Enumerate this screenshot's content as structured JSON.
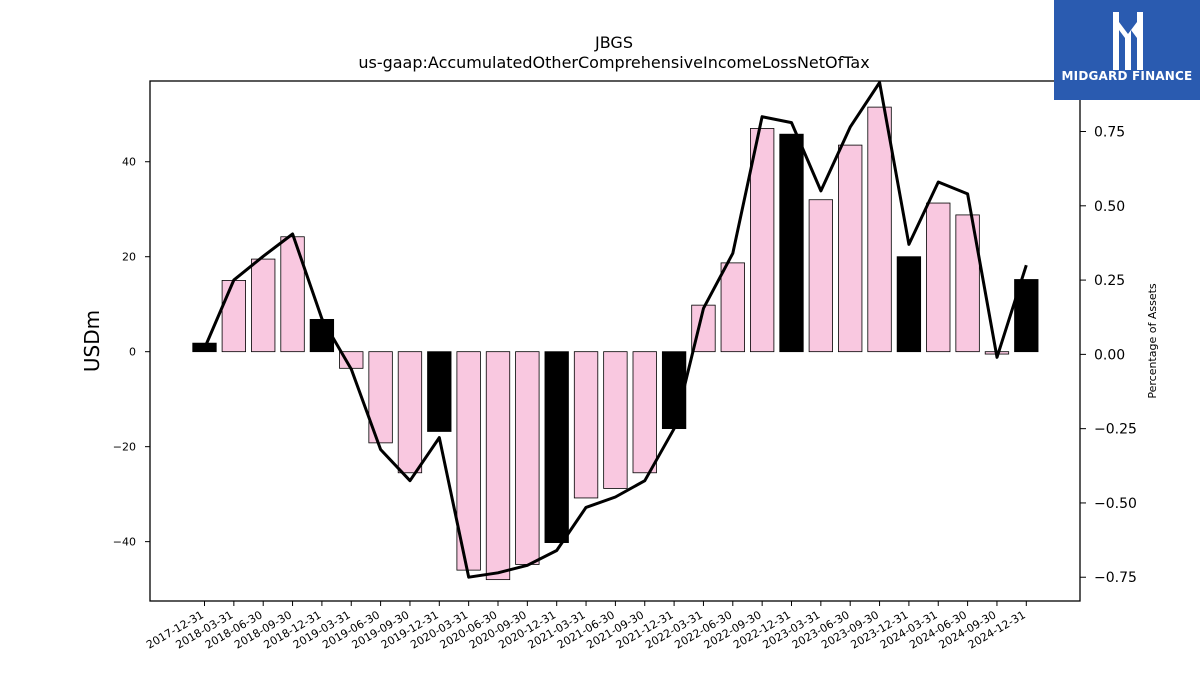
{
  "brand": {
    "name": "MIDGARD FINANCE",
    "background": "#2a5bb0",
    "icon": "midgard-logo-icon"
  },
  "chart_data": {
    "type": "bar",
    "title": "JBGS",
    "subtitle": "us-gaap:AccumulatedOtherComprehensiveIncomeLossNetOfTax",
    "ylabel": "USDm",
    "ylabel_right": "Percentage of Assets",
    "ylim": [
      -52.5,
      57
    ],
    "ylim_right": [
      -0.83,
      0.92
    ],
    "yticks": [
      -40,
      -20,
      0,
      20,
      40
    ],
    "yticks_right": [
      -0.75,
      -0.5,
      -0.25,
      0.0,
      0.25,
      0.5,
      0.75
    ],
    "yticks_right_labels": [
      "−0.75",
      "−0.50",
      "−0.25",
      "0.00",
      "0.25",
      "0.50",
      "0.75"
    ],
    "grid": false,
    "colors": {
      "quarter": "#f9c8e0",
      "year_end": "#000000",
      "line": "#000000"
    },
    "categories": [
      "2017-12-31",
      "2018-03-31",
      "2018-06-30",
      "2018-09-30",
      "2018-12-31",
      "2019-03-31",
      "2019-06-30",
      "2019-09-30",
      "2019-12-31",
      "2020-03-31",
      "2020-06-30",
      "2020-09-30",
      "2020-12-31",
      "2021-03-31",
      "2021-06-30",
      "2021-09-30",
      "2021-12-31",
      "2022-03-31",
      "2022-06-30",
      "2022-09-30",
      "2022-12-31",
      "2023-03-31",
      "2023-06-30",
      "2023-09-30",
      "2023-12-31",
      "2024-03-31",
      "2024-06-30",
      "2024-09-30",
      "2024-12-31"
    ],
    "series": [
      {
        "values": [
          1.8,
          15,
          19.5,
          24.2,
          6.8,
          -3.5,
          -19.2,
          -25.5,
          -16.8,
          -46,
          -48,
          -44.8,
          -40.2,
          -30.8,
          -28.8,
          -25.5,
          -16.2,
          9.8,
          18.7,
          47,
          45.8,
          32,
          43.5,
          51.5,
          20,
          31.3,
          28.8,
          -0.5,
          15.2
        ]
      },
      {
        "axis": "right",
        "values": [
          0.02,
          0.25,
          0.33,
          0.405,
          0.12,
          -0.05,
          -0.32,
          -0.425,
          -0.28,
          -0.75,
          -0.735,
          -0.71,
          -0.66,
          -0.515,
          -0.48,
          -0.425,
          -0.25,
          0.155,
          0.34,
          0.8,
          0.78,
          0.55,
          0.765,
          0.915,
          0.37,
          0.58,
          0.54,
          -0.01,
          0.3
        ]
      }
    ]
  }
}
